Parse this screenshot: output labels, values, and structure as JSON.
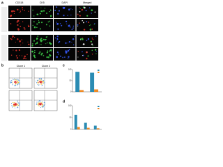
{
  "panel_a": {
    "label": "a",
    "columns": [
      "CD318",
      "CK5",
      "DAPI",
      "Merged"
    ]
  },
  "panel_b": {
    "label": "b",
    "columns": [
      "Clone 1",
      "Clone 2"
    ]
  },
  "panel_c": {
    "label": "c",
    "ylim": [
      0,
      100
    ],
    "yticks": [
      0,
      50,
      100
    ],
    "series": [
      {
        "color": "#2b8cb3",
        "values": [
          90,
          86
        ]
      },
      {
        "color": "#f08a24",
        "values": [
          8,
          11
        ]
      }
    ]
  },
  "panel_d": {
    "label": "d",
    "ylim": [
      0,
      100
    ],
    "yticks": [
      0,
      50,
      100
    ],
    "series": [
      {
        "color": "#2b8cb3",
        "values": [
          62,
          28,
          16
        ]
      },
      {
        "color": "#f08a24",
        "values": [
          10,
          7,
          5
        ]
      }
    ]
  }
}
